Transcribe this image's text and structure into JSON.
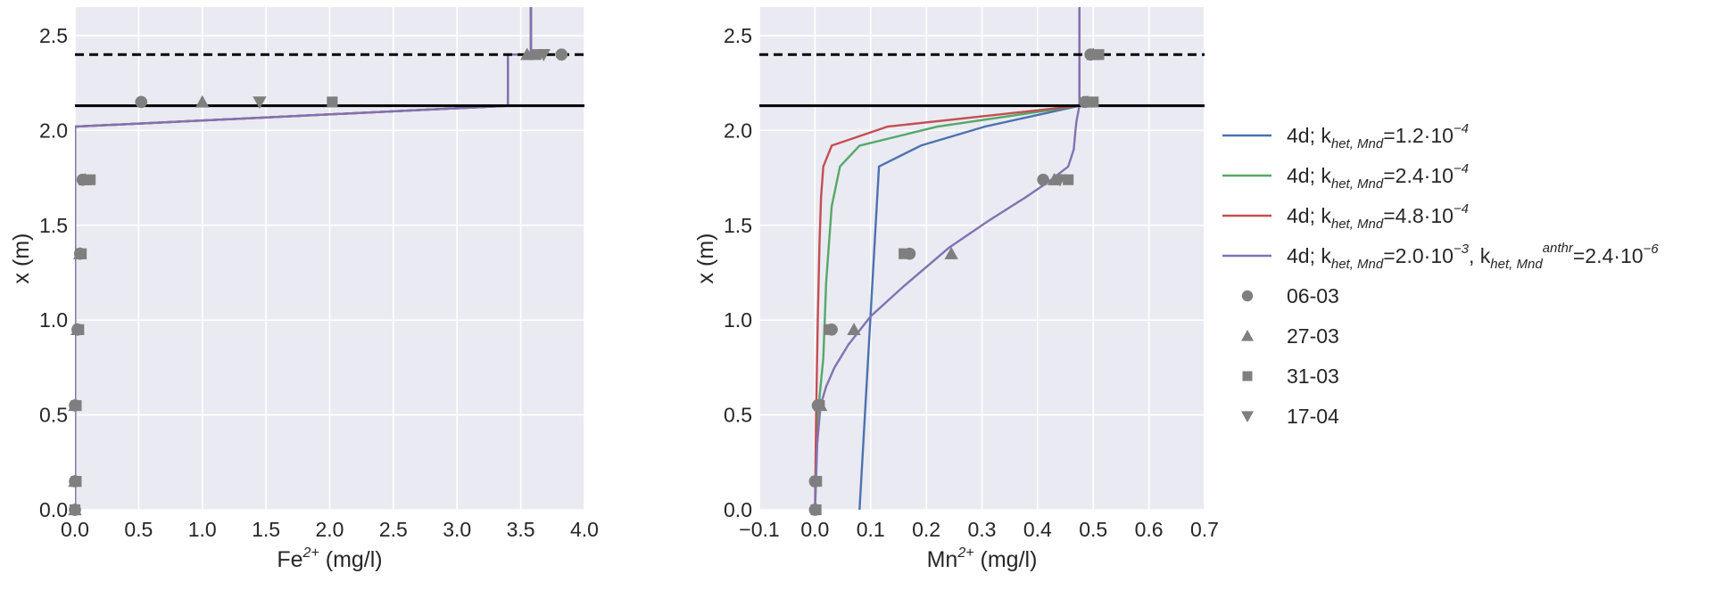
{
  "colors": {
    "plot_bg": "#EAEAF2",
    "grid": "#FFFFFF",
    "text": "#262626",
    "marker": "#7F7F7F",
    "blue": "#4C72B0",
    "green": "#55A868",
    "red": "#C44E52",
    "purple": "#8172B2",
    "hline": "#000000"
  },
  "legend": {
    "placement": "right of second panel",
    "entries": [
      {
        "key": "blue",
        "kind": "line",
        "prefix": "4d; k",
        "sub1": "het, Mnd",
        "mid": "=1.2·10",
        "sup1": "−4"
      },
      {
        "key": "green",
        "kind": "line",
        "prefix": "4d; k",
        "sub1": "het, Mnd",
        "mid": "=2.4·10",
        "sup1": "−4"
      },
      {
        "key": "red",
        "kind": "line",
        "prefix": "4d; k",
        "sub1": "het, Mnd",
        "mid": "=4.8·10",
        "sup1": "−4"
      },
      {
        "key": "purple",
        "kind": "line",
        "prefix": "4d; k",
        "sub1": "het, Mnd",
        "mid": "=2.0·10",
        "sup1": "−3",
        "mid2": ", k",
        "sub2": "het, Mnd",
        "sup2": "anthr",
        "end": "=2.4·10",
        "sup3": "−6"
      },
      {
        "key": "06-03",
        "kind": "marker",
        "shape": "circle",
        "label": "06-03"
      },
      {
        "key": "27-03",
        "kind": "marker",
        "shape": "triangle-up",
        "label": "27-03"
      },
      {
        "key": "31-03",
        "kind": "marker",
        "shape": "square",
        "label": "31-03"
      },
      {
        "key": "17-04",
        "kind": "marker",
        "shape": "triangle-down",
        "label": "17-04"
      }
    ]
  },
  "chart_data": [
    {
      "type": "line",
      "panel": "Fe",
      "xlabel": {
        "base": "Fe",
        "sup": "2+",
        "rest": " (mg/l)"
      },
      "ylabel": "x (m)",
      "xlim": [
        0.0,
        4.0
      ],
      "ylim": [
        0.0,
        2.65
      ],
      "xticks": [
        "0.0",
        "0.5",
        "1.0",
        "1.5",
        "2.0",
        "2.5",
        "3.0",
        "3.5",
        "4.0"
      ],
      "yticks": [
        "0.0",
        "0.5",
        "1.0",
        "1.5",
        "2.0",
        "2.5"
      ],
      "grid": true,
      "hlines": [
        {
          "y": 2.13,
          "style": "solid"
        },
        {
          "y": 2.4,
          "style": "dashed"
        }
      ],
      "series": [
        {
          "key": "blue",
          "x": [
            0.0,
            0.0,
            3.4,
            3.4,
            3.58,
            3.58
          ],
          "y": [
            0.0,
            2.02,
            2.13,
            2.4,
            2.4,
            2.65
          ]
        },
        {
          "key": "green",
          "x": [
            0.0,
            0.0,
            3.4,
            3.4,
            3.58,
            3.58
          ],
          "y": [
            0.0,
            2.02,
            2.13,
            2.4,
            2.4,
            2.65
          ]
        },
        {
          "key": "red",
          "x": [
            0.0,
            0.0,
            3.4,
            3.4,
            3.58,
            3.58
          ],
          "y": [
            0.0,
            2.02,
            2.13,
            2.4,
            2.4,
            2.65
          ]
        },
        {
          "key": "purple",
          "x": [
            0.0,
            0.0,
            3.4,
            3.4,
            3.58,
            3.58
          ],
          "y": [
            0.0,
            2.02,
            2.13,
            2.4,
            2.4,
            2.65
          ]
        }
      ],
      "observations": [
        {
          "key": "06-03",
          "points": [
            [
              0.0,
              0.0
            ],
            [
              0.0,
              0.15
            ],
            [
              0.0,
              0.55
            ],
            [
              0.02,
              0.95
            ],
            [
              0.04,
              1.35
            ],
            [
              0.06,
              1.74
            ],
            [
              0.52,
              2.15
            ],
            [
              3.82,
              2.4
            ]
          ]
        },
        {
          "key": "27-03",
          "points": [
            [
              0.0,
              0.0
            ],
            [
              0.0,
              0.15
            ],
            [
              0.0,
              0.55
            ],
            [
              0.02,
              0.95
            ],
            [
              0.04,
              1.35
            ],
            [
              0.08,
              1.74
            ],
            [
              1.0,
              2.15
            ],
            [
              3.55,
              2.4
            ]
          ]
        },
        {
          "key": "31-03",
          "points": [
            [
              0.0,
              0.0
            ],
            [
              0.01,
              0.15
            ],
            [
              0.01,
              0.55
            ],
            [
              0.03,
              0.95
            ],
            [
              0.05,
              1.35
            ],
            [
              0.12,
              1.74
            ],
            [
              2.02,
              2.15
            ],
            [
              3.62,
              2.4
            ]
          ]
        },
        {
          "key": "17-04",
          "points": [
            [
              1.45,
              2.15
            ],
            [
              3.68,
              2.4
            ]
          ]
        }
      ]
    },
    {
      "type": "line",
      "panel": "Mn",
      "xlabel": {
        "base": "Mn",
        "sup": "2+",
        "rest": " (mg/l)"
      },
      "ylabel": "x (m)",
      "xlim": [
        -0.1,
        0.7
      ],
      "ylim": [
        0.0,
        2.65
      ],
      "xticks": [
        "−0.1",
        "0.0",
        "0.1",
        "0.2",
        "0.3",
        "0.4",
        "0.5",
        "0.6",
        "0.7"
      ],
      "yticks": [
        "0.0",
        "0.5",
        "1.0",
        "1.5",
        "2.0",
        "2.5"
      ],
      "grid": true,
      "hlines": [
        {
          "y": 2.13,
          "style": "solid"
        },
        {
          "y": 2.4,
          "style": "dashed"
        }
      ],
      "series": [
        {
          "key": "blue",
          "x": [
            0.08,
            0.115,
            0.19,
            0.305,
            0.475,
            0.475
          ],
          "y": [
            0.0,
            1.81,
            1.92,
            2.02,
            2.13,
            2.65
          ]
        },
        {
          "key": "green",
          "x": [
            0.0,
            0.005,
            0.015,
            0.02,
            0.03,
            0.045,
            0.08,
            0.22,
            0.475,
            0.475
          ],
          "y": [
            0.0,
            0.5,
            0.8,
            1.2,
            1.6,
            1.81,
            1.92,
            2.02,
            2.13,
            2.65
          ]
        },
        {
          "key": "red",
          "x": [
            0.0,
            0.002,
            0.005,
            0.008,
            0.011,
            0.015,
            0.03,
            0.13,
            0.475,
            0.475
          ],
          "y": [
            0.0,
            0.5,
            1.0,
            1.4,
            1.65,
            1.81,
            1.92,
            2.02,
            2.13,
            2.65
          ]
        },
        {
          "key": "purple",
          "x": [
            0.0,
            0.004,
            0.01,
            0.02,
            0.035,
            0.06,
            0.1,
            0.16,
            0.24,
            0.31,
            0.38,
            0.42,
            0.455,
            0.465,
            0.468,
            0.47,
            0.475,
            0.475
          ],
          "y": [
            0.0,
            0.35,
            0.55,
            0.65,
            0.75,
            0.87,
            1.02,
            1.18,
            1.38,
            1.52,
            1.65,
            1.73,
            1.81,
            1.9,
            2.0,
            2.05,
            2.13,
            2.65
          ]
        }
      ],
      "observations": [
        {
          "key": "06-03",
          "points": [
            [
              0.0,
              0.0
            ],
            [
              0.0,
              0.15
            ],
            [
              0.005,
              0.55
            ],
            [
              0.03,
              0.95
            ],
            [
              0.17,
              1.35
            ],
            [
              0.41,
              1.74
            ],
            [
              0.485,
              2.15
            ],
            [
              0.495,
              2.4
            ]
          ]
        },
        {
          "key": "27-03",
          "points": [
            [
              0.01,
              0.55
            ],
            [
              0.07,
              0.95
            ],
            [
              0.245,
              1.35
            ],
            [
              0.43,
              1.74
            ],
            [
              0.49,
              2.15
            ],
            [
              0.5,
              2.4
            ]
          ]
        },
        {
          "key": "31-03",
          "points": [
            [
              0.002,
              0.0
            ],
            [
              0.003,
              0.15
            ],
            [
              0.008,
              0.55
            ],
            [
              0.025,
              0.95
            ],
            [
              0.16,
              1.35
            ],
            [
              0.455,
              1.74
            ],
            [
              0.5,
              2.15
            ],
            [
              0.51,
              2.4
            ]
          ]
        },
        {
          "key": "17-04",
          "points": [
            [
              0.44,
              1.74
            ]
          ]
        }
      ]
    }
  ]
}
